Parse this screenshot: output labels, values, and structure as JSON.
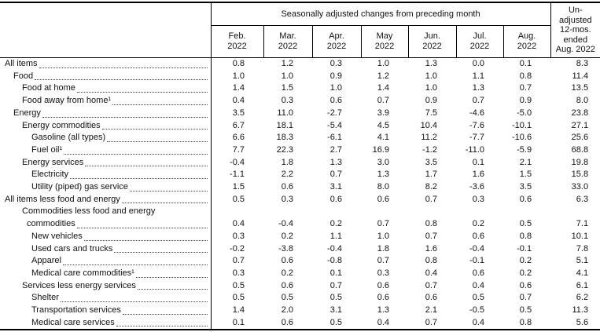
{
  "table": {
    "spanner_header": "Seasonally adjusted changes from preceding month",
    "unadjusted_header_lines": [
      "Un-",
      "adjusted",
      "12-mos.",
      "ended",
      "Aug. 2022"
    ],
    "month_headers": [
      {
        "month": "Feb.",
        "year": "2022"
      },
      {
        "month": "Mar.",
        "year": "2022"
      },
      {
        "month": "Apr.",
        "year": "2022"
      },
      {
        "month": "May",
        "year": "2022"
      },
      {
        "month": "Jun.",
        "year": "2022"
      },
      {
        "month": "Jul.",
        "year": "2022"
      },
      {
        "month": "Aug.",
        "year": "2022"
      }
    ],
    "rows": [
      {
        "label": "All items",
        "indent": 0,
        "values": [
          "0.8",
          "1.2",
          "0.3",
          "1.0",
          "1.3",
          "0.0",
          "0.1",
          "8.3"
        ]
      },
      {
        "label": "Food",
        "indent": 1,
        "values": [
          "1.0",
          "1.0",
          "0.9",
          "1.2",
          "1.0",
          "1.1",
          "0.8",
          "11.4"
        ]
      },
      {
        "label": "Food at home",
        "indent": 2,
        "values": [
          "1.4",
          "1.5",
          "1.0",
          "1.4",
          "1.0",
          "1.3",
          "0.7",
          "13.5"
        ]
      },
      {
        "label": "Food away from home¹",
        "indent": 2,
        "values": [
          "0.4",
          "0.3",
          "0.6",
          "0.7",
          "0.9",
          "0.7",
          "0.9",
          "8.0"
        ]
      },
      {
        "label": "Energy",
        "indent": 1,
        "values": [
          "3.5",
          "11.0",
          "-2.7",
          "3.9",
          "7.5",
          "-4.6",
          "-5.0",
          "23.8"
        ]
      },
      {
        "label": "Energy commodities",
        "indent": 2,
        "values": [
          "6.7",
          "18.1",
          "-5.4",
          "4.5",
          "10.4",
          "-7.6",
          "-10.1",
          "27.1"
        ]
      },
      {
        "label": "Gasoline (all types)",
        "indent": 3,
        "values": [
          "6.6",
          "18.3",
          "-6.1",
          "4.1",
          "11.2",
          "-7.7",
          "-10.6",
          "25.6"
        ]
      },
      {
        "label": "Fuel oil¹",
        "indent": 3,
        "values": [
          "7.7",
          "22.3",
          "2.7",
          "16.9",
          "-1.2",
          "-11.0",
          "-5.9",
          "68.8"
        ]
      },
      {
        "label": "Energy services",
        "indent": 2,
        "values": [
          "-0.4",
          "1.8",
          "1.3",
          "3.0",
          "3.5",
          "0.1",
          "2.1",
          "19.8"
        ]
      },
      {
        "label": "Electricity",
        "indent": 3,
        "values": [
          "-1.1",
          "2.2",
          "0.7",
          "1.3",
          "1.7",
          "1.6",
          "1.5",
          "15.8"
        ]
      },
      {
        "label": "Utility (piped) gas service",
        "indent": 3,
        "values": [
          "1.5",
          "0.6",
          "3.1",
          "8.0",
          "8.2",
          "-3.6",
          "3.5",
          "33.0"
        ]
      },
      {
        "label": "All items less food and energy",
        "indent": 0,
        "values": [
          "0.5",
          "0.3",
          "0.6",
          "0.6",
          "0.7",
          "0.3",
          "0.6",
          "6.3"
        ]
      },
      {
        "label": "Commodities less food and energy",
        "label2": "commodities",
        "indent": 2,
        "values": [
          "0.4",
          "-0.4",
          "0.2",
          "0.7",
          "0.8",
          "0.2",
          "0.5",
          "7.1"
        ]
      },
      {
        "label": "New vehicles",
        "indent": 3,
        "values": [
          "0.3",
          "0.2",
          "1.1",
          "1.0",
          "0.7",
          "0.6",
          "0.8",
          "10.1"
        ]
      },
      {
        "label": "Used cars and trucks",
        "indent": 3,
        "values": [
          "-0.2",
          "-3.8",
          "-0.4",
          "1.8",
          "1.6",
          "-0.4",
          "-0.1",
          "7.8"
        ]
      },
      {
        "label": "Apparel",
        "indent": 3,
        "values": [
          "0.7",
          "0.6",
          "-0.8",
          "0.7",
          "0.8",
          "-0.1",
          "0.2",
          "5.1"
        ]
      },
      {
        "label": "Medical care commodities¹",
        "indent": 3,
        "values": [
          "0.3",
          "0.2",
          "0.1",
          "0.3",
          "0.4",
          "0.6",
          "0.2",
          "4.1"
        ]
      },
      {
        "label": "Services less energy services",
        "indent": 2,
        "values": [
          "0.5",
          "0.6",
          "0.7",
          "0.6",
          "0.7",
          "0.4",
          "0.6",
          "6.1"
        ]
      },
      {
        "label": "Shelter",
        "indent": 3,
        "values": [
          "0.5",
          "0.5",
          "0.5",
          "0.6",
          "0.6",
          "0.5",
          "0.7",
          "6.2"
        ]
      },
      {
        "label": "Transportation services",
        "indent": 3,
        "values": [
          "1.4",
          "2.0",
          "3.1",
          "1.3",
          "2.1",
          "-0.5",
          "0.5",
          "11.3"
        ]
      },
      {
        "label": "Medical care services",
        "indent": 3,
        "values": [
          "0.1",
          "0.6",
          "0.5",
          "0.4",
          "0.7",
          "0.4",
          "0.8",
          "5.6"
        ]
      }
    ]
  }
}
